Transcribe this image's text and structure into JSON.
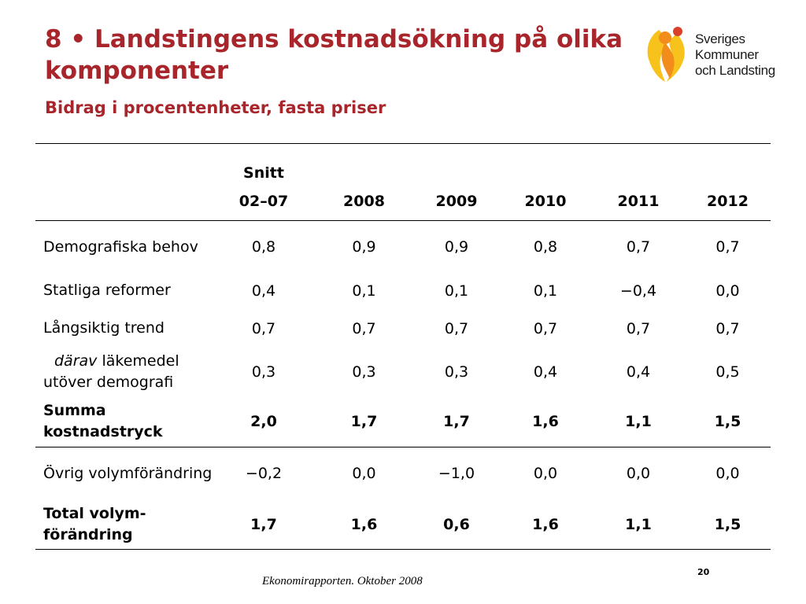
{
  "slide": {
    "title": "8 • Landstingens kostnadsökning på olika komponenter",
    "subtitle": "Bidrag i procentenheter, fasta priser"
  },
  "logo": {
    "lines": [
      "Sveriges",
      "Kommuner",
      "och Landsting"
    ],
    "colors": {
      "orange": "#f28c1b",
      "yellow": "#f7c21c",
      "red": "#d9402a"
    }
  },
  "table": {
    "header_top": "Snitt",
    "columns": [
      "02–07",
      "2008",
      "2009",
      "2010",
      "2011",
      "2012"
    ],
    "rows": [
      {
        "label": "Demografiska behov",
        "values": [
          "0,8",
          "0,9",
          "0,9",
          "0,8",
          "0,7",
          "0,7"
        ]
      },
      {
        "label": "Statliga reformer",
        "values": [
          "0,4",
          "0,1",
          "0,1",
          "0,1",
          "−0,4",
          "0,0"
        ]
      },
      {
        "label": "Långsiktig trend",
        "values": [
          "0,7",
          "0,7",
          "0,7",
          "0,7",
          "0,7",
          "0,7"
        ]
      },
      {
        "label_italic": "därav",
        "label_rest": " läkemedel utöver demografi",
        "values": [
          "0,3",
          "0,3",
          "0,3",
          "0,4",
          "0,4",
          "0,5"
        ]
      },
      {
        "label": "Summa kostnadstryck",
        "values": [
          "2,0",
          "1,7",
          "1,7",
          "1,6",
          "1,1",
          "1,5"
        ]
      },
      {
        "label": "Övrig volymförändring",
        "values": [
          "−0,2",
          "0,0",
          "−1,0",
          "0,0",
          "0,0",
          "0,0"
        ]
      },
      {
        "label": "Total volym-förändring",
        "values": [
          "1,7",
          "1,6",
          "0,6",
          "1,6",
          "1,1",
          "1,5"
        ]
      }
    ]
  },
  "footer": {
    "source": "Ekonomirapporten. Oktober 2008",
    "page": "20"
  },
  "colors": {
    "title": "#a8262b"
  }
}
